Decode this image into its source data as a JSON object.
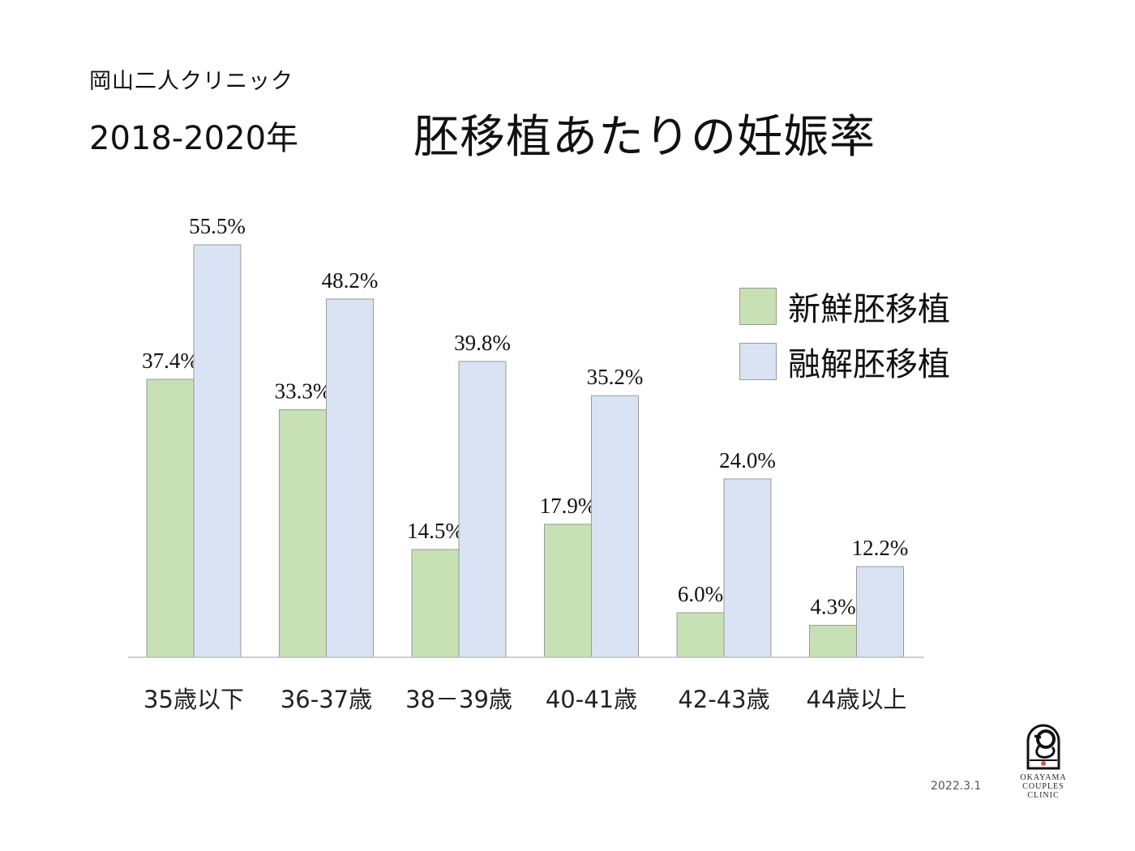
{
  "header": {
    "clinic_name": "岡山二人クリニック",
    "years": "2018-2020年",
    "title": "胚移植あたりの妊娠率"
  },
  "footer": {
    "date": "2022.3.1"
  },
  "logo": {
    "line1": "OKAYAMA",
    "line2": "COUPLES",
    "line3": "CLINIC",
    "icon": "crane-logo-icon"
  },
  "colors": {
    "fresh": "#c7e0b4",
    "frozen": "#dae3f3",
    "bar_border": "#9a9a9a",
    "axis": "#bfbfbf"
  },
  "chart_data": {
    "type": "bar",
    "title": "胚移植あたりの妊娠率",
    "categories": [
      "35歳以下",
      "36-37歳",
      "38－39歳",
      "40-41歳",
      "42-43歳",
      "44歳以上"
    ],
    "series": [
      {
        "name": "新鮮胚移植",
        "values": [
          37.4,
          33.3,
          14.5,
          17.9,
          6.0,
          4.3
        ],
        "labels": [
          "37.4%",
          "33.3%",
          "14.5%",
          "17.9%",
          "6.0%",
          "4.3%"
        ]
      },
      {
        "name": "融解胚移植",
        "values": [
          55.5,
          48.2,
          39.8,
          35.2,
          24.0,
          12.2
        ],
        "labels": [
          "55.5%",
          "48.2%",
          "39.8%",
          "35.2%",
          "24.0%",
          "12.2%"
        ]
      }
    ],
    "unit": "%",
    "ylim": [
      0,
      55.5
    ],
    "grid": false,
    "legend": "top-right"
  }
}
